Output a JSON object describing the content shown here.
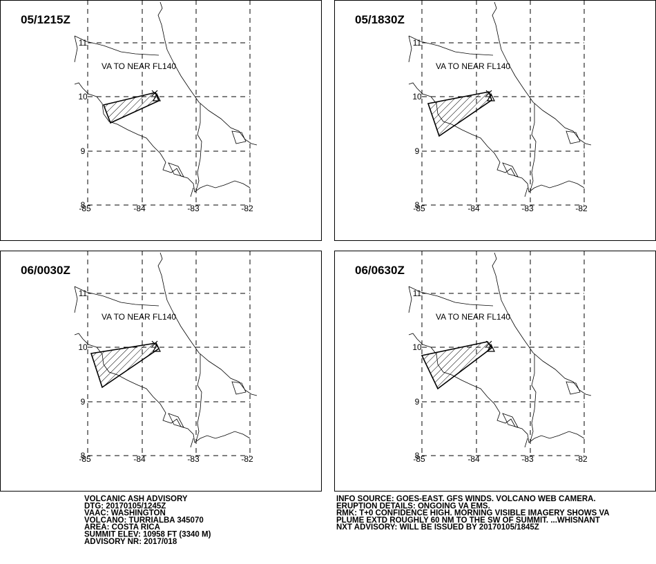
{
  "panels": [
    {
      "time": "05/1215Z",
      "note": "VA TO NEAR FL140"
    },
    {
      "time": "05/1830Z",
      "note": "VA TO NEAR FL140"
    },
    {
      "time": "06/0030Z",
      "note": "VA TO NEAR FL140"
    },
    {
      "time": "06/0630Z",
      "note": "VA TO NEAR FL140"
    }
  ],
  "lat_labels": [
    "11",
    "10",
    "9",
    "8"
  ],
  "lon_labels": [
    "-85",
    "-84",
    "-83",
    "-82"
  ],
  "advisory_left": [
    "VOLCANIC ASH ADVISORY",
    "DTG: 20170105/1245Z",
    "VAAC: WASHINGTON",
    "VOLCANO: TURRIALBA 345070",
    "AREA: COSTA RICA",
    "SUMMIT ELEV: 10958 FT (3340 M)",
    "ADVISORY NR: 2017/018"
  ],
  "advisory_right": [
    "INFO SOURCE: GOES-EAST. GFS WINDS. VOLCANO WEB CAMERA.",
    "ERUPTION DETAILS: ONGOING VA EMS.",
    "RMK: T+0 CONFIDENCE HIGH. MORNING VISIBLE IMAGERY SHOWS VA",
    "PLUME EXTD ROUGHLY 60 NM TO THE SW OF SUMMIT. ...WHISNANT",
    "NXT ADVISORY: WILL BE ISSUED BY 20170105/1845Z"
  ]
}
